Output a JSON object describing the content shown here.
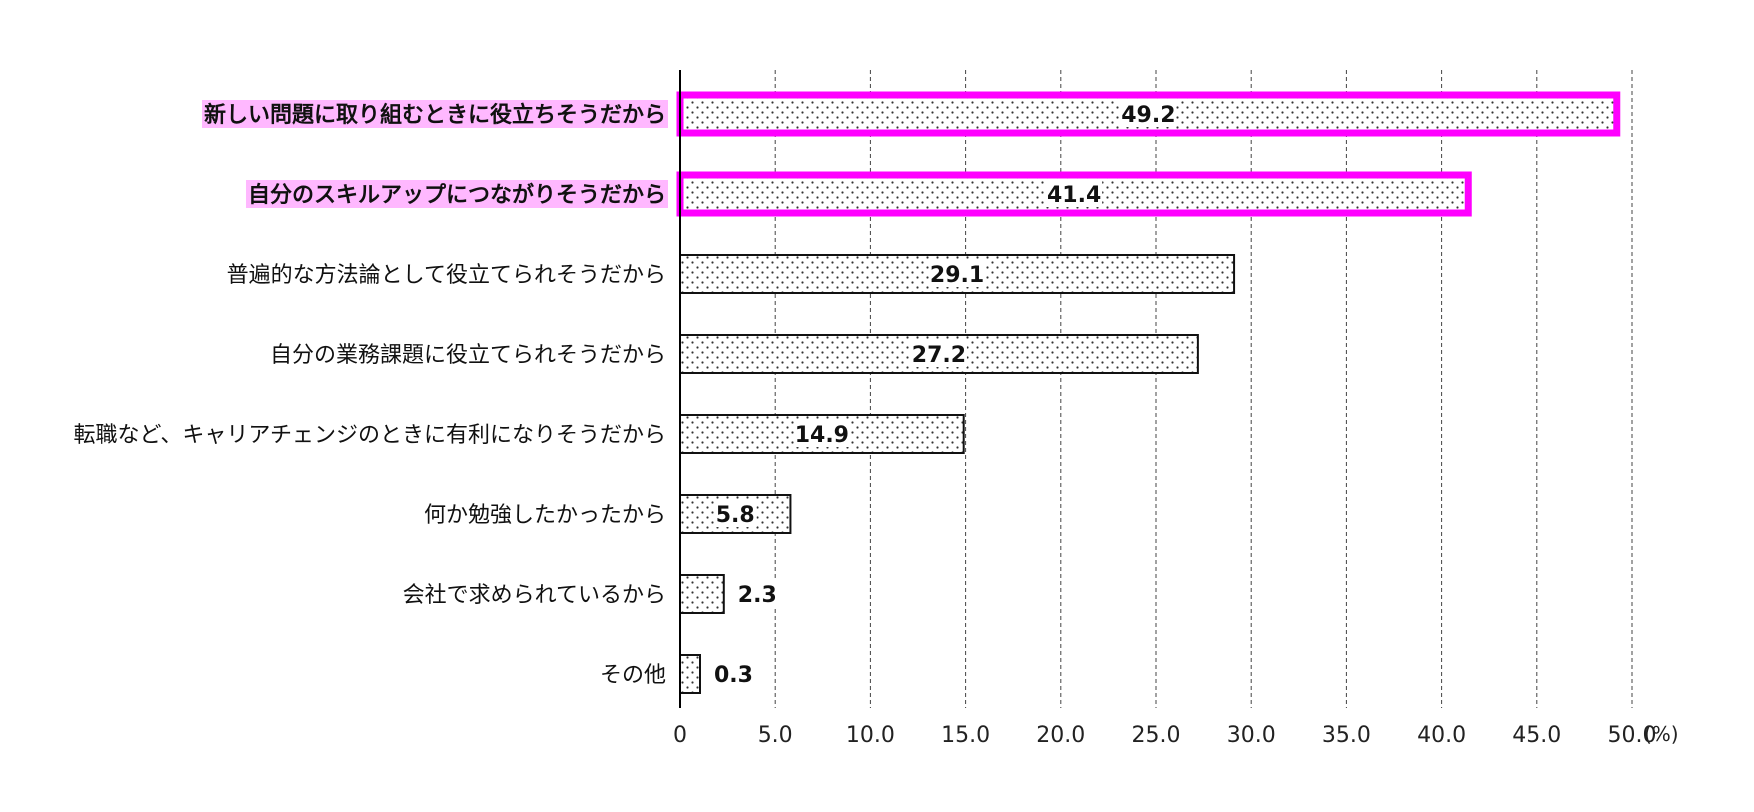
{
  "chart_data": {
    "type": "bar",
    "orientation": "horizontal",
    "categories": [
      "新しい問題に取り組むときに役立ちそうだから",
      "自分のスキルアップにつながりそうだから",
      "普遍的な方法論として役立てられそうだから",
      "自分の業務課題に役立てられそうだから",
      "転職など、キャリアチェンジのときに有利になりそうだから",
      "何か勉強したかったから",
      "会社で求められているから",
      "その他"
    ],
    "values": [
      49.2,
      41.4,
      29.1,
      27.2,
      14.9,
      5.8,
      2.3,
      0.3
    ],
    "value_labels": [
      "49.2",
      "41.4",
      "29.1",
      "27.2",
      "14.9",
      "5.8",
      "2.3",
      "0.3"
    ],
    "highlighted": [
      true,
      true,
      false,
      false,
      false,
      false,
      false,
      false
    ],
    "xlim": [
      0,
      50
    ],
    "x_ticks": [
      "0",
      "5.0",
      "10.0",
      "15.0",
      "20.0",
      "25.0",
      "30.0",
      "35.0",
      "40.0",
      "45.0",
      "50.0"
    ],
    "x_unit": "(%)",
    "grid": "vertical dashed",
    "bar_fill": "dotted pattern",
    "highlight_color": "#ff00ff",
    "highlight_label_bg": "#ffb8ff"
  }
}
